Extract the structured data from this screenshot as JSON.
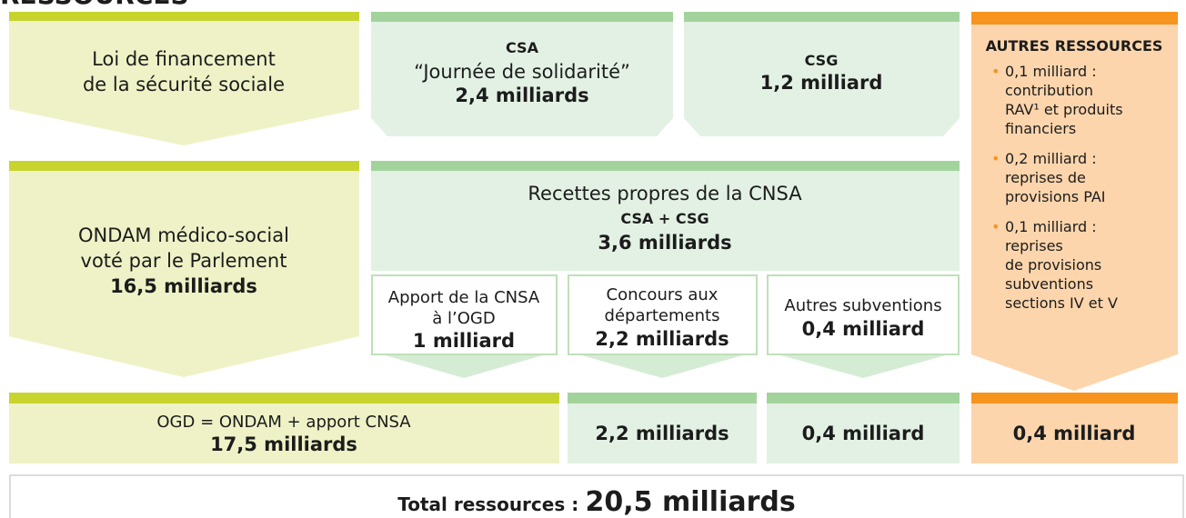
{
  "title": "RESSOURCES",
  "blocks": {
    "lfss": {
      "lines": [
        "Loi de financement",
        "de la sécurité sociale"
      ]
    },
    "csa": {
      "label": "CSA",
      "name": "“Journée de solidarité”",
      "amount": "2,4 milliards"
    },
    "csg": {
      "label": "CSG",
      "amount": "1,2 milliard"
    },
    "autres": {
      "title": "AUTRES RESSOURCES",
      "items": [
        [
          "0,1 milliard :",
          "contribution",
          "RAV¹ et produits",
          "financiers"
        ],
        [
          "0,2 milliard :",
          "reprises de",
          "provisions PAI"
        ],
        [
          "0,1 milliard :",
          "reprises",
          "de provisions",
          "subventions",
          "sections IV et V"
        ]
      ]
    },
    "ondam": {
      "lines": [
        "ONDAM médico-social",
        "voté par le Parlement"
      ],
      "amount": "16,5 milliards"
    },
    "recettes": {
      "title": "Recettes propres de la CNSA",
      "subtitle": "CSA + CSG",
      "amount": "3,6 milliards"
    },
    "apport": {
      "lines": [
        "Apport de la CNSA",
        "à l’OGD"
      ],
      "amount": "1 milliard"
    },
    "concours": {
      "lines": [
        "Concours aux",
        "départements"
      ],
      "amount": "2,2 milliards"
    },
    "subventions": {
      "lines": [
        "Autres subventions"
      ],
      "amount": "0,4 milliard"
    }
  },
  "totals": {
    "ogd": {
      "label": "OGD = ONDAM + apport CNSA",
      "amount": "17,5 milliards"
    },
    "departements": "2,2 milliards",
    "subventions": "0,4 milliard",
    "autres": "0,4 milliard",
    "total_label": "Total ressources :",
    "total_amount": "20,5 milliards"
  }
}
